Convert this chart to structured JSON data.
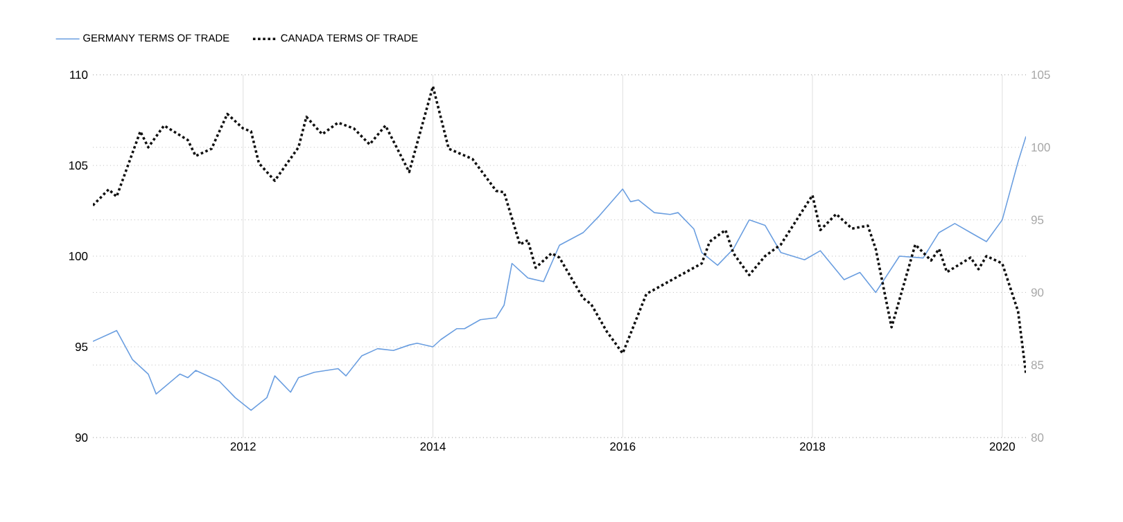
{
  "chart_data": {
    "type": "line",
    "series": [
      {
        "name": "GERMANY TERMS OF TRADE",
        "color": "#6a9ee0",
        "line_style": "solid",
        "axis": "y",
        "x": [
          "2010-06",
          "2010-08",
          "2010-09",
          "2010-11",
          "2011-01",
          "2011-02",
          "2011-05",
          "2011-06",
          "2011-07",
          "2011-10",
          "2011-12",
          "2012-02",
          "2012-04",
          "2012-05",
          "2012-07",
          "2012-08",
          "2012-10",
          "2013-01",
          "2013-02",
          "2013-04",
          "2013-06",
          "2013-08",
          "2013-10",
          "2013-11",
          "2014-01",
          "2014-02",
          "2014-04",
          "2014-05",
          "2014-07",
          "2014-09",
          "2014-10",
          "2014-11",
          "2015-01",
          "2015-03",
          "2015-05",
          "2015-08",
          "2015-10",
          "2016-01",
          "2016-02",
          "2016-03",
          "2016-05",
          "2016-07",
          "2016-08",
          "2016-10",
          "2016-11",
          "2017-01",
          "2017-03",
          "2017-05",
          "2017-07",
          "2017-09",
          "2017-12",
          "2018-02",
          "2018-05",
          "2018-07",
          "2018-09",
          "2018-12",
          "2019-03",
          "2019-05",
          "2019-07",
          "2019-09",
          "2019-11",
          "2020-01",
          "2020-03",
          "2020-04"
        ],
        "values": [
          95.3,
          95.7,
          95.9,
          94.3,
          93.5,
          92.4,
          93.5,
          93.3,
          93.7,
          93.1,
          92.2,
          91.5,
          92.2,
          93.4,
          92.5,
          93.3,
          93.6,
          93.8,
          93.4,
          94.5,
          94.9,
          94.8,
          95.1,
          95.2,
          95.0,
          95.4,
          96.0,
          96.0,
          96.5,
          96.6,
          97.3,
          99.6,
          98.8,
          98.6,
          100.6,
          101.3,
          102.2,
          103.7,
          103.0,
          103.1,
          102.4,
          102.3,
          102.4,
          101.5,
          100.2,
          99.5,
          100.4,
          102.0,
          101.7,
          100.2,
          99.8,
          100.3,
          98.7,
          99.1,
          98.0,
          100.0,
          99.9,
          101.3,
          101.8,
          101.3,
          100.8,
          102.0,
          105.2,
          106.6
        ]
      },
      {
        "name": "CANADA TERMS OF TRADE",
        "color": "#111111",
        "line_style": "dotted",
        "axis": "y2",
        "x": [
          "2010-06",
          "2010-08",
          "2010-09",
          "2010-12",
          "2011-01",
          "2011-03",
          "2011-06",
          "2011-07",
          "2011-09",
          "2011-11",
          "2012-01",
          "2012-02",
          "2012-03",
          "2012-05",
          "2012-08",
          "2012-09",
          "2012-11",
          "2013-01",
          "2013-03",
          "2013-05",
          "2013-07",
          "2013-10",
          "2014-01",
          "2014-03",
          "2014-06",
          "2014-09",
          "2014-10",
          "2014-12",
          "2015-01",
          "2015-02",
          "2015-04",
          "2015-05",
          "2015-08",
          "2015-09",
          "2015-11",
          "2016-01",
          "2016-04",
          "2016-07",
          "2016-09",
          "2016-11",
          "2016-12",
          "2017-02",
          "2017-03",
          "2017-05",
          "2017-07",
          "2017-09",
          "2018-01",
          "2018-02",
          "2018-04",
          "2018-06",
          "2018-08",
          "2018-09",
          "2018-11",
          "2019-02",
          "2019-04",
          "2019-05",
          "2019-06",
          "2019-09",
          "2019-10",
          "2019-11",
          "2020-01",
          "2020-03",
          "2020-04"
        ],
        "values": [
          96.0,
          97.1,
          96.6,
          101.1,
          100.0,
          101.5,
          100.5,
          99.4,
          99.9,
          102.3,
          101.3,
          101.1,
          98.9,
          97.7,
          100.0,
          102.1,
          100.9,
          101.7,
          101.3,
          100.2,
          101.5,
          98.3,
          104.2,
          99.9,
          99.2,
          97.0,
          96.9,
          93.3,
          93.6,
          91.7,
          92.7,
          92.4,
          89.6,
          89.2,
          87.3,
          85.8,
          89.9,
          90.8,
          91.4,
          92.0,
          93.5,
          94.3,
          92.7,
          91.2,
          92.5,
          93.3,
          96.7,
          94.3,
          95.4,
          94.4,
          94.6,
          93.0,
          87.6,
          93.3,
          92.2,
          93.0,
          91.4,
          92.4,
          91.6,
          92.5,
          92.0,
          88.7,
          84.4
        ]
      }
    ],
    "xlim": [
      "2010-06",
      "2020-04"
    ],
    "xticks": [
      "2012",
      "2014",
      "2016",
      "2018",
      "2020"
    ],
    "ylim": [
      90,
      110
    ],
    "yticks": [
      90,
      95,
      100,
      105,
      110
    ],
    "y2lim": [
      80,
      105
    ],
    "y2ticks": [
      80,
      85,
      90,
      95,
      100,
      105
    ],
    "grid": true,
    "legend": "top left",
    "marker": "none"
  }
}
